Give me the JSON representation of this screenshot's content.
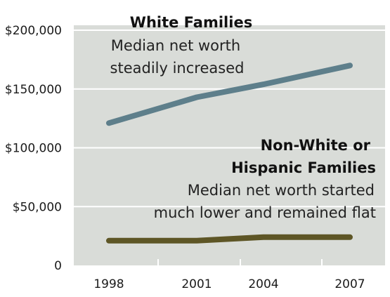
{
  "chart_data": {
    "type": "line",
    "x": [
      1998,
      2001,
      2004,
      2007
    ],
    "x_tick_labels": [
      "1998",
      "2001",
      "2004",
      "2007"
    ],
    "ylim": [
      0,
      210000
    ],
    "y_ticks": [
      0,
      50000,
      100000,
      150000,
      200000
    ],
    "y_tick_labels": [
      "0",
      "$50,000",
      "$100,000",
      "$150,000",
      "$200,000"
    ],
    "grid": true,
    "series": [
      {
        "name": "White Families",
        "note_lines": [
          "Median net worth",
          "steadily increased"
        ],
        "values": [
          121000,
          143000,
          154000,
          170000
        ],
        "color": "#5e7f8b"
      },
      {
        "name_lines": [
          "Non-White or",
          "Hispanic Families"
        ],
        "note_lines": [
          "Median net worth started",
          "much lower and remained flat"
        ],
        "values": [
          21000,
          21000,
          24000,
          24000
        ],
        "color": "#5e5626"
      }
    ],
    "background_color": "#d9dcd8",
    "grid_color": "#ffffff"
  }
}
